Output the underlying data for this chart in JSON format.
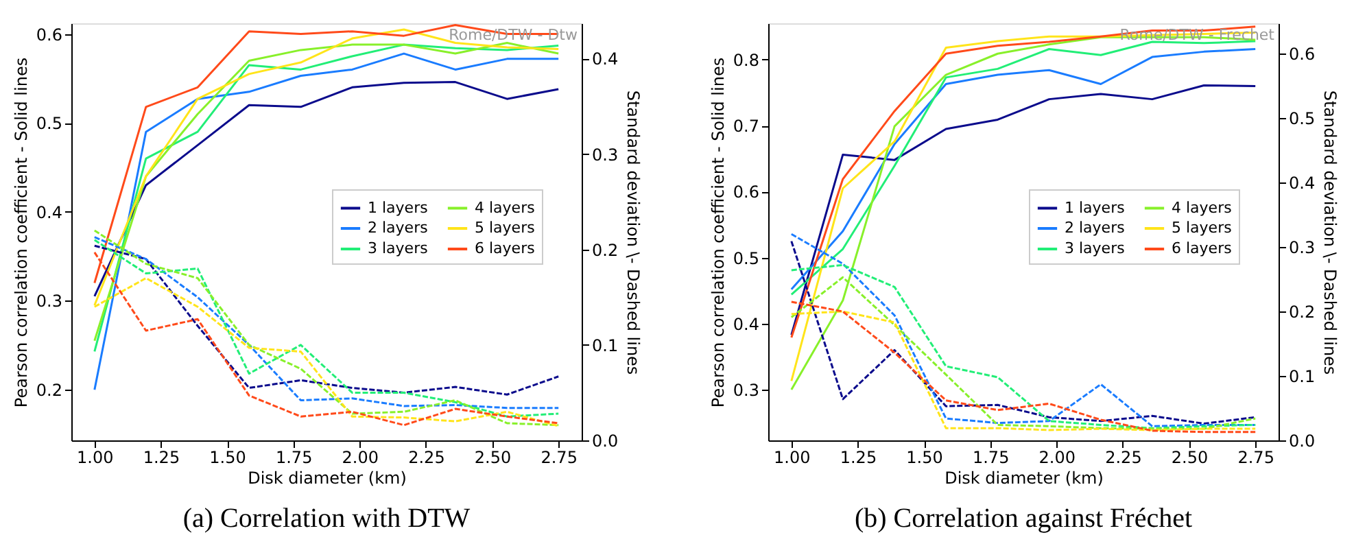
{
  "chart_data": [
    {
      "type": "line",
      "title": "(a) Correlation with DTW",
      "xlabel": "Disk diameter (km)",
      "ylabel": "Pearson correlation coefficient - Solid lines",
      "y2label": "Standard deviation \\- Dashed lines",
      "annotations": [
        "Rome/DTW - Dtw"
      ],
      "x": [
        1.0,
        1.194,
        1.389,
        1.583,
        1.778,
        1.972,
        2.167,
        2.361,
        2.556,
        2.75
      ],
      "xlim": [
        0.9125,
        2.8375
      ],
      "xticks": [
        {
          "value": 1,
          "label": "1.00"
        },
        {
          "value": 1.25,
          "label": "1.25"
        },
        {
          "value": 1.5,
          "label": "1.50"
        },
        {
          "value": 1.75,
          "label": "1.75"
        },
        {
          "value": 2,
          "label": "2.00"
        },
        {
          "value": 2.25,
          "label": "2.25"
        },
        {
          "value": 2.5,
          "label": "2.50"
        },
        {
          "value": 2.75,
          "label": "2.75"
        }
      ],
      "ylim": [
        0.143,
        0.612
      ],
      "yticks": [
        0.2,
        0.3,
        0.4,
        0.5,
        0.6
      ],
      "y2lim": [
        0,
        0.437
      ],
      "y2ticks": [
        {
          "value": 0,
          "label": "0.0"
        },
        0.1,
        0.2,
        0.3,
        0.4
      ],
      "grid": false,
      "legend": "right",
      "marker": "none",
      "series": [
        {
          "name": "1 layers",
          "color": "#0b0b8c",
          "line_style": "solid",
          "values": [
            0.305,
            0.43,
            0.475,
            0.52,
            0.518,
            0.54,
            0.545,
            0.546,
            0.527,
            0.538
          ]
        },
        {
          "name": "2 layers",
          "color": "#1a7cff",
          "line_style": "solid",
          "values": [
            0.2,
            0.49,
            0.527,
            0.535,
            0.553,
            0.56,
            0.578,
            0.56,
            0.572,
            0.572
          ]
        },
        {
          "name": "3 layers",
          "color": "#22ee77",
          "line_style": "solid",
          "values": [
            0.243,
            0.46,
            0.49,
            0.565,
            0.56,
            0.575,
            0.588,
            0.584,
            0.582,
            0.587
          ]
        },
        {
          "name": "4 layers",
          "color": "#88f02a",
          "line_style": "solid",
          "values": [
            0.255,
            0.44,
            0.51,
            0.57,
            0.582,
            0.588,
            0.588,
            0.578,
            0.59,
            0.578
          ]
        },
        {
          "name": "5 layers",
          "color": "#ffe41a",
          "line_style": "solid",
          "values": [
            0.295,
            0.44,
            0.527,
            0.555,
            0.568,
            0.595,
            0.605,
            0.59,
            0.585,
            0.583
          ]
        },
        {
          "name": "6 layers",
          "color": "#ff4a1a",
          "line_style": "solid",
          "values": [
            0.32,
            0.518,
            0.54,
            0.603,
            0.6,
            0.603,
            0.598,
            0.61,
            0.6,
            0.6
          ]
        },
        {
          "color": "#0b0b8c",
          "axis": "y2",
          "line_style": "dashed",
          "values": [
            0.204,
            0.19,
            0.12,
            0.055,
            0.063,
            0.055,
            0.05,
            0.056,
            0.048,
            0.067
          ]
        },
        {
          "color": "#1a7cff",
          "axis": "y2",
          "line_style": "dashed",
          "values": [
            0.213,
            0.19,
            0.15,
            0.1,
            0.042,
            0.044,
            0.036,
            0.037,
            0.034,
            0.034
          ]
        },
        {
          "color": "#22ee77",
          "axis": "y2",
          "line_style": "dashed",
          "values": [
            0.21,
            0.175,
            0.18,
            0.07,
            0.1,
            0.05,
            0.05,
            0.04,
            0.025,
            0.028
          ]
        },
        {
          "color": "#88f02a",
          "axis": "y2",
          "line_style": "dashed",
          "values": [
            0.22,
            0.185,
            0.17,
            0.1,
            0.075,
            0.028,
            0.03,
            0.042,
            0.018,
            0.016
          ]
        },
        {
          "color": "#ffe41a",
          "axis": "y2",
          "line_style": "dashed",
          "values": [
            0.14,
            0.17,
            0.14,
            0.097,
            0.093,
            0.025,
            0.024,
            0.02,
            0.03,
            0.015
          ]
        },
        {
          "color": "#ff4a1a",
          "axis": "y2",
          "line_style": "dashed",
          "values": [
            0.197,
            0.115,
            0.127,
            0.047,
            0.025,
            0.03,
            0.016,
            0.033,
            0.025,
            0.018
          ]
        }
      ]
    },
    {
      "type": "line",
      "title": "(b) Correlation against Fréchet",
      "xlabel": "Disk diameter (km)",
      "ylabel": "Pearson correlation coefficient - Solid lines",
      "y2label": "Standard deviation \\- Dashed lines",
      "annotations": [
        "Rome/DTW - Frechet"
      ],
      "x": [
        1.0,
        1.194,
        1.389,
        1.583,
        1.778,
        1.972,
        2.167,
        2.361,
        2.556,
        2.75
      ],
      "xlim": [
        0.9125,
        2.8375
      ],
      "xticks": [
        {
          "value": 1,
          "label": "1.00"
        },
        {
          "value": 1.25,
          "label": "1.25"
        },
        {
          "value": 1.5,
          "label": "1.50"
        },
        {
          "value": 1.75,
          "label": "1.75"
        },
        {
          "value": 2,
          "label": "2.00"
        },
        {
          "value": 2.25,
          "label": "2.25"
        },
        {
          "value": 2.5,
          "label": "2.50"
        },
        {
          "value": 2.75,
          "label": "2.75"
        }
      ],
      "ylim": [
        0.223,
        0.855
      ],
      "yticks": [
        0.3,
        0.4,
        0.5,
        0.6,
        0.7,
        0.8
      ],
      "y2lim": [
        0,
        0.647
      ],
      "y2ticks": [
        {
          "value": 0,
          "label": "0.0"
        },
        0.1,
        0.2,
        0.3,
        0.4,
        0.5,
        0.6
      ],
      "grid": false,
      "legend": "right",
      "marker": "none",
      "series": [
        {
          "name": "1 layers",
          "color": "#0b0b8c",
          "line_style": "solid",
          "values": [
            0.383,
            0.656,
            0.648,
            0.695,
            0.709,
            0.74,
            0.748,
            0.74,
            0.761,
            0.76
          ]
        },
        {
          "name": "2 layers",
          "color": "#1a7cff",
          "line_style": "solid",
          "values": [
            0.452,
            0.54,
            0.672,
            0.763,
            0.777,
            0.784,
            0.763,
            0.804,
            0.812,
            0.816
          ]
        },
        {
          "name": "3 layers",
          "color": "#22ee77",
          "line_style": "solid",
          "values": [
            0.444,
            0.513,
            0.639,
            0.773,
            0.786,
            0.816,
            0.807,
            0.827,
            0.825,
            0.828
          ]
        },
        {
          "name": "4 layers",
          "color": "#88f02a",
          "line_style": "solid",
          "values": [
            0.3,
            0.435,
            0.699,
            0.777,
            0.809,
            0.823,
            0.834,
            0.834,
            0.834,
            0.83
          ]
        },
        {
          "name": "5 layers",
          "color": "#ffe41a",
          "line_style": "solid",
          "values": [
            0.313,
            0.605,
            0.676,
            0.818,
            0.828,
            0.835,
            0.835,
            0.837,
            0.839,
            0.841
          ]
        },
        {
          "name": "6 layers",
          "color": "#ff4a1a",
          "line_style": "solid",
          "values": [
            0.379,
            0.619,
            0.722,
            0.809,
            0.821,
            0.827,
            0.835,
            0.844,
            0.844,
            0.85
          ]
        },
        {
          "color": "#0b0b8c",
          "axis": "y2",
          "line_style": "dashed",
          "values": [
            0.309,
            0.064,
            0.14,
            0.053,
            0.055,
            0.036,
            0.03,
            0.038,
            0.026,
            0.036
          ]
        },
        {
          "color": "#1a7cff",
          "axis": "y2",
          "line_style": "dashed",
          "values": [
            0.32,
            0.274,
            0.194,
            0.034,
            0.027,
            0.03,
            0.087,
            0.022,
            0.024,
            0.024
          ]
        },
        {
          "color": "#22ee77",
          "axis": "y2",
          "line_style": "dashed",
          "values": [
            0.264,
            0.272,
            0.238,
            0.115,
            0.098,
            0.03,
            0.024,
            0.019,
            0.022,
            0.024
          ]
        },
        {
          "color": "#88f02a",
          "axis": "y2",
          "line_style": "dashed",
          "values": [
            0.191,
            0.253,
            0.179,
            0.102,
            0.024,
            0.022,
            0.019,
            0.018,
            0.018,
            0.034
          ]
        },
        {
          "color": "#ffe41a",
          "axis": "y2",
          "line_style": "dashed",
          "values": [
            0.196,
            0.2,
            0.183,
            0.019,
            0.019,
            0.016,
            0.018,
            0.016,
            0.018,
            0.018
          ]
        },
        {
          "color": "#ff4a1a",
          "axis": "y2",
          "line_style": "dashed",
          "values": [
            0.215,
            0.2,
            0.136,
            0.062,
            0.047,
            0.057,
            0.032,
            0.015,
            0.013,
            0.013
          ]
        }
      ]
    }
  ]
}
